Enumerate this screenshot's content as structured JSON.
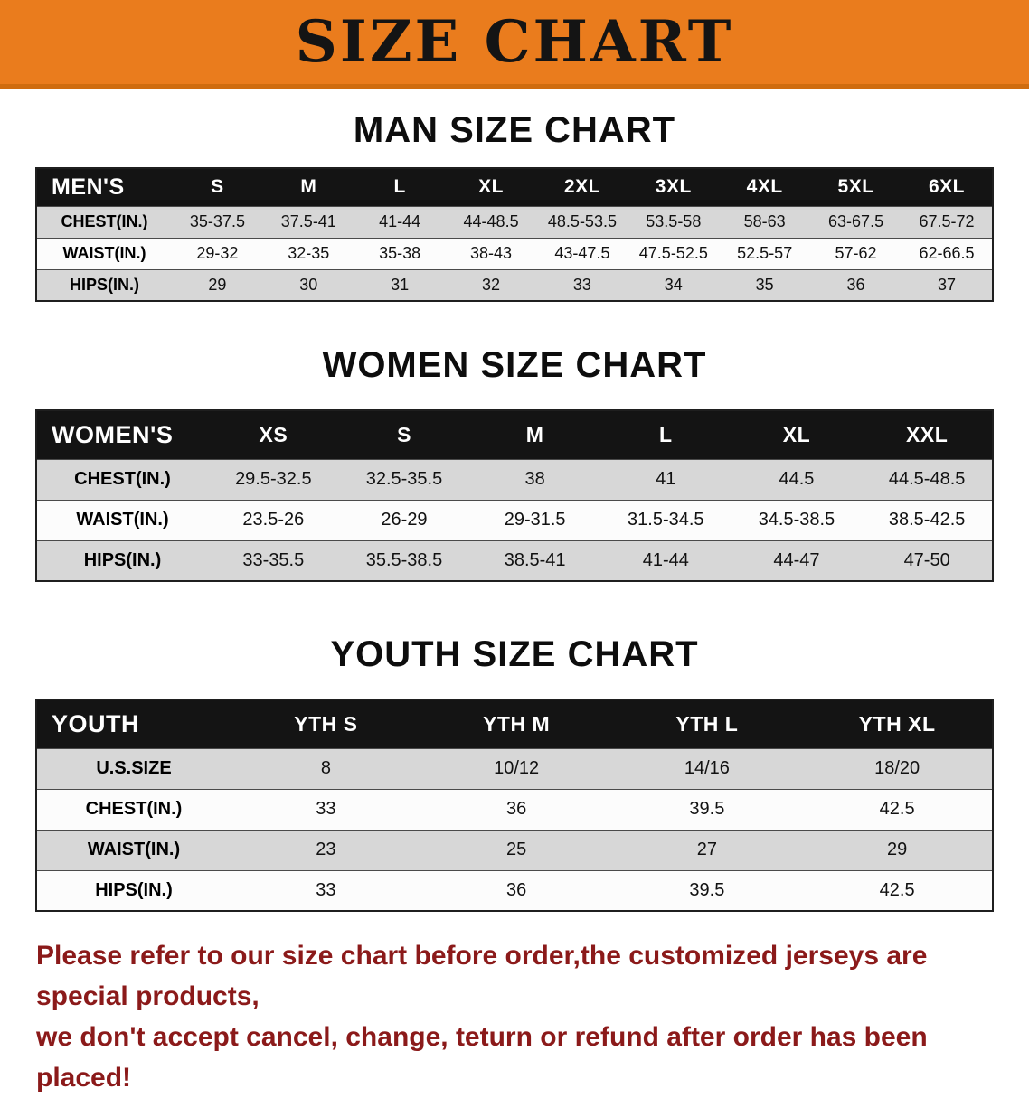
{
  "banner": {
    "title": "SIZE CHART"
  },
  "colors": {
    "banner_bg": "#ea7c1d",
    "banner_text": "#141414",
    "header_bg": "#141414",
    "header_text": "#ffffff",
    "row_gray": "#d7d7d7",
    "row_white": "#fcfcfc",
    "note_color": "#8b1a1a"
  },
  "sections": [
    {
      "title": "MAN SIZE CHART",
      "header_label": "MEN'S",
      "columns": [
        "S",
        "M",
        "L",
        "XL",
        "2XL",
        "3XL",
        "4XL",
        "5XL",
        "6XL"
      ],
      "rows": [
        {
          "label": "CHEST(IN.)",
          "values": [
            "35-37.5",
            "37.5-41",
            "41-44",
            "44-48.5",
            "48.5-53.5",
            "53.5-58",
            "58-63",
            "63-67.5",
            "67.5-72"
          ]
        },
        {
          "label": "WAIST(IN.)",
          "values": [
            "29-32",
            "32-35",
            "35-38",
            "38-43",
            "43-47.5",
            "47.5-52.5",
            "52.5-57",
            "57-62",
            "62-66.5"
          ]
        },
        {
          "label": "HIPS(IN.)",
          "values": [
            "29",
            "30",
            "31",
            "32",
            "33",
            "34",
            "35",
            "36",
            "37"
          ]
        }
      ]
    },
    {
      "title": "WOMEN SIZE CHART",
      "header_label": "WOMEN'S",
      "columns": [
        "XS",
        "S",
        "M",
        "L",
        "XL",
        "XXL"
      ],
      "rows": [
        {
          "label": "CHEST(IN.)",
          "values": [
            "29.5-32.5",
            "32.5-35.5",
            "38",
            "41",
            "44.5",
            "44.5-48.5"
          ]
        },
        {
          "label": "WAIST(IN.)",
          "values": [
            "23.5-26",
            "26-29",
            "29-31.5",
            "31.5-34.5",
            "34.5-38.5",
            "38.5-42.5"
          ]
        },
        {
          "label": "HIPS(IN.)",
          "values": [
            "33-35.5",
            "35.5-38.5",
            "38.5-41",
            "41-44",
            "44-47",
            "47-50"
          ]
        }
      ]
    },
    {
      "title": "YOUTH SIZE CHART",
      "header_label": "YOUTH",
      "columns": [
        "YTH S",
        "YTH M",
        "YTH L",
        "YTH XL"
      ],
      "rows": [
        {
          "label": "U.S.SIZE",
          "values": [
            "8",
            "10/12",
            "14/16",
            "18/20"
          ]
        },
        {
          "label": "CHEST(IN.)",
          "values": [
            "33",
            "36",
            "39.5",
            "42.5"
          ]
        },
        {
          "label": "WAIST(IN.)",
          "values": [
            "23",
            "25",
            "27",
            "29"
          ]
        },
        {
          "label": "HIPS(IN.)",
          "values": [
            "33",
            "36",
            "39.5",
            "42.5"
          ]
        }
      ]
    }
  ],
  "note": {
    "line1": "Please refer to our size chart before order,the customized jerseys are special products,",
    "line2": "we don't accept cancel, change, teturn or refund after order has been placed!"
  }
}
